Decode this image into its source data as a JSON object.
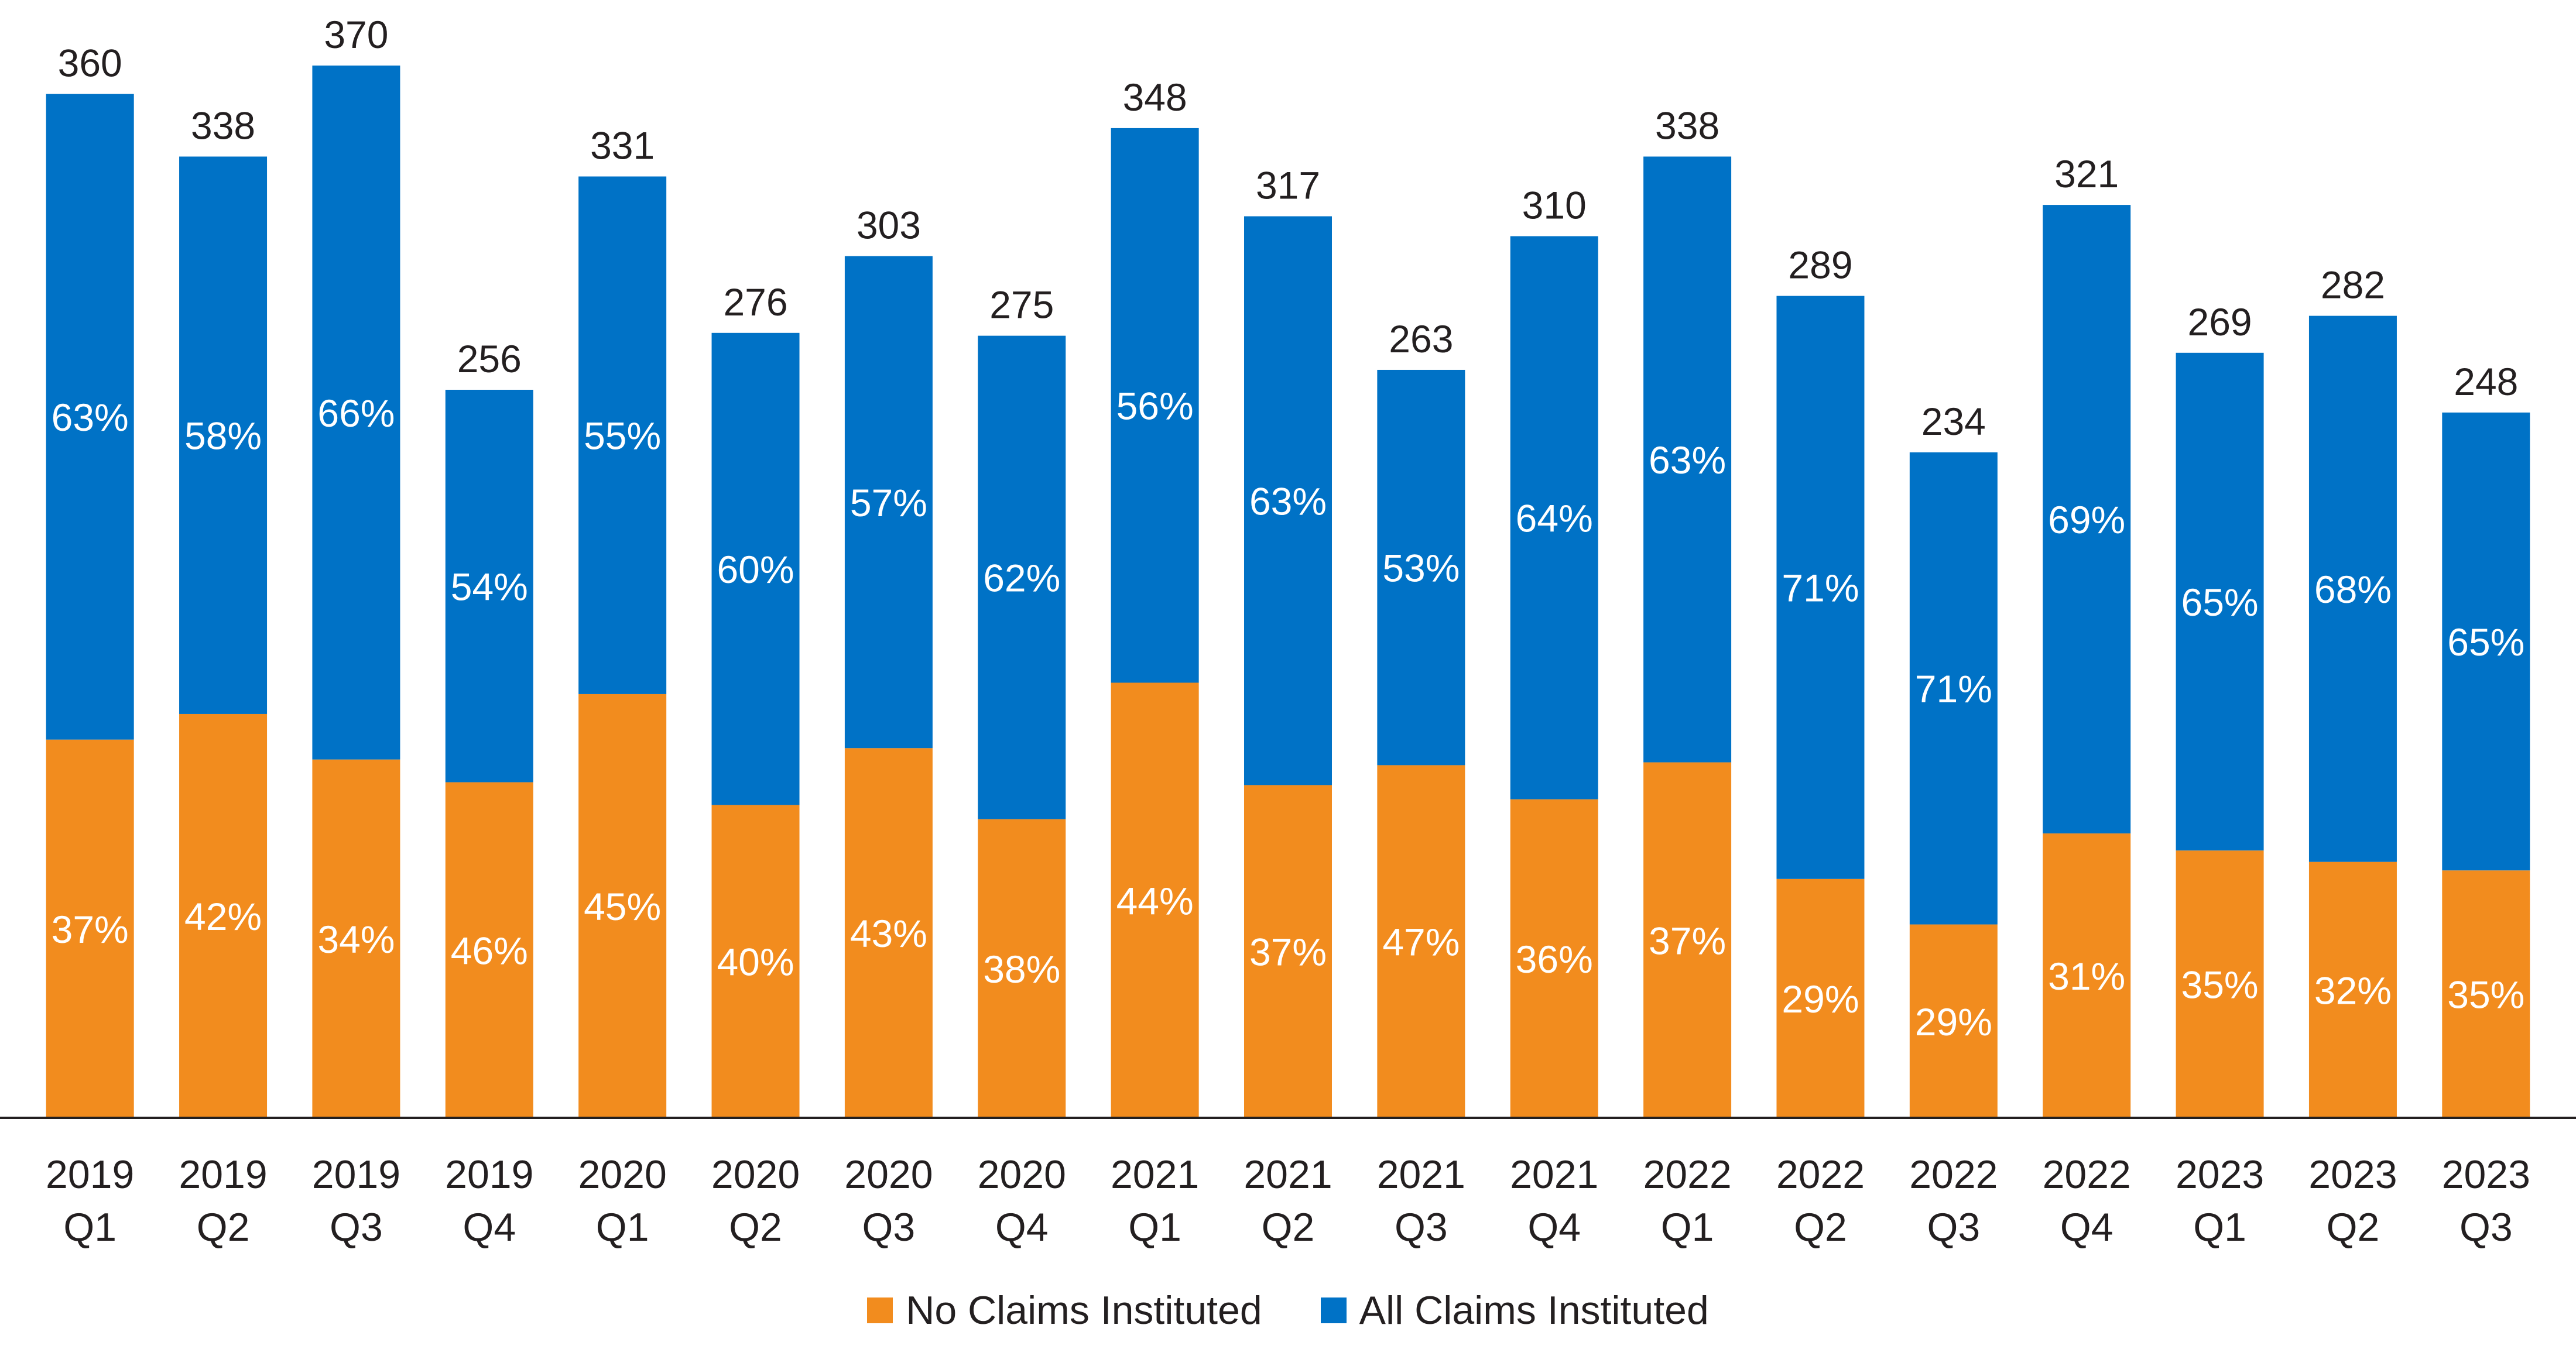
{
  "chart_data": {
    "type": "bar",
    "stacked": true,
    "categories": [
      [
        "2019",
        "Q1"
      ],
      [
        "2019",
        "Q2"
      ],
      [
        "2019",
        "Q3"
      ],
      [
        "2019",
        "Q4"
      ],
      [
        "2020",
        "Q1"
      ],
      [
        "2020",
        "Q2"
      ],
      [
        "2020",
        "Q3"
      ],
      [
        "2020",
        "Q4"
      ],
      [
        "2021",
        "Q1"
      ],
      [
        "2021",
        "Q2"
      ],
      [
        "2021",
        "Q3"
      ],
      [
        "2021",
        "Q4"
      ],
      [
        "2022",
        "Q1"
      ],
      [
        "2022",
        "Q2"
      ],
      [
        "2022",
        "Q3"
      ],
      [
        "2022",
        "Q4"
      ],
      [
        "2023",
        "Q1"
      ],
      [
        "2023",
        "Q2"
      ],
      [
        "2023",
        "Q3"
      ]
    ],
    "totals": [
      360,
      338,
      370,
      256,
      331,
      276,
      303,
      275,
      348,
      317,
      263,
      310,
      338,
      289,
      234,
      321,
      269,
      282,
      248
    ],
    "series": [
      {
        "name": "No Claims Instituted",
        "color": "#f28c1e",
        "percent_labels": [
          "37%",
          "42%",
          "34%",
          "46%",
          "45%",
          "40%",
          "43%",
          "38%",
          "44%",
          "37%",
          "47%",
          "36%",
          "37%",
          "29%",
          "29%",
          "31%",
          "35%",
          "32%",
          "35%"
        ],
        "values": [
          133,
          142,
          126,
          118,
          149,
          110,
          130,
          105,
          153,
          117,
          124,
          112,
          125,
          84,
          68,
          100,
          94,
          90,
          87
        ]
      },
      {
        "name": "All Claims Instituted",
        "color": "#0072c6",
        "percent_labels": [
          "63%",
          "58%",
          "66%",
          "54%",
          "55%",
          "60%",
          "57%",
          "62%",
          "56%",
          "63%",
          "53%",
          "64%",
          "63%",
          "71%",
          "71%",
          "69%",
          "65%",
          "68%",
          "65%"
        ],
        "values": [
          227,
          196,
          244,
          138,
          182,
          166,
          173,
          170,
          195,
          200,
          139,
          198,
          213,
          205,
          166,
          221,
          175,
          192,
          161
        ]
      }
    ],
    "ylim": [
      0,
      370
    ],
    "grid": false,
    "legend": "bottom-center",
    "title": "",
    "xlabel": "",
    "ylabel": ""
  }
}
